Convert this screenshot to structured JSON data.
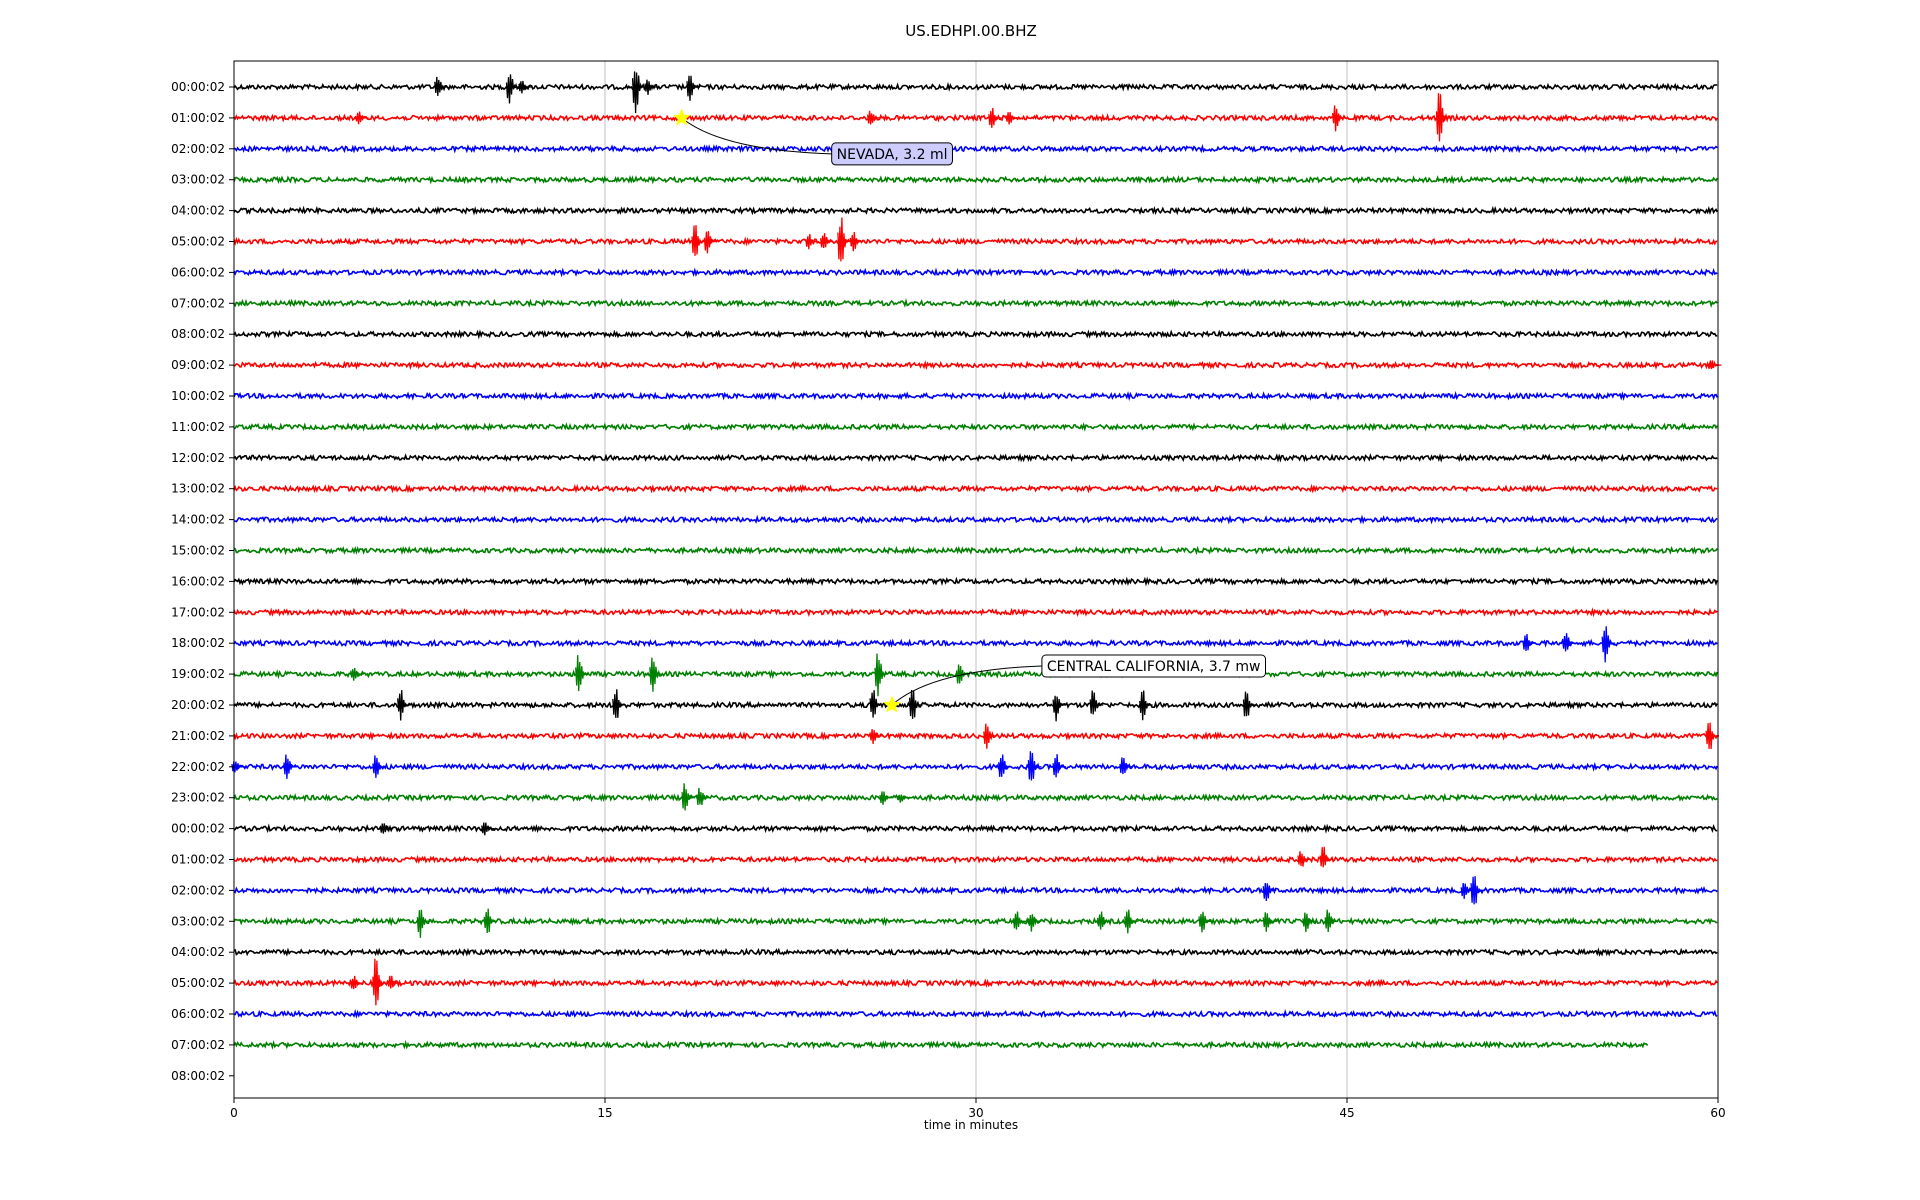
{
  "chart_data": {
    "type": "line",
    "subtype": "seismic-dayplot",
    "title": "US.EDHPI.00.BHZ",
    "xlabel": "time in minutes",
    "ylabel": "",
    "xlim": [
      0,
      60
    ],
    "x_ticks": [
      0,
      15,
      30,
      45,
      60
    ],
    "grid": "vertical-at-ticks",
    "line_colors": [
      "#000000",
      "#ff0000",
      "#0000ff",
      "#008000"
    ],
    "row_labels": [
      "00:00:02",
      "01:00:02",
      "02:00:02",
      "03:00:02",
      "04:00:02",
      "05:00:02",
      "06:00:02",
      "07:00:02",
      "08:00:02",
      "09:00:02",
      "10:00:02",
      "11:00:02",
      "12:00:02",
      "13:00:02",
      "14:00:02",
      "15:00:02",
      "16:00:02",
      "17:00:02",
      "18:00:02",
      "19:00:02",
      "20:00:02",
      "21:00:02",
      "22:00:02",
      "23:00:02",
      "00:00:02",
      "01:00:02",
      "02:00:02",
      "03:00:02",
      "04:00:02",
      "05:00:02",
      "06:00:02",
      "07:00:02",
      "08:00:02"
    ],
    "traces": [
      {
        "label": "00:00:02",
        "color": "#000000",
        "end_minute": 60,
        "spikes": [
          {
            "t": 8.4,
            "amp": 0.5
          },
          {
            "t": 11.3,
            "amp": 0.7
          },
          {
            "t": 11.8,
            "amp": 0.3
          },
          {
            "t": 16.4,
            "amp": 1.0
          },
          {
            "t": 16.9,
            "amp": 0.3
          },
          {
            "t": 18.6,
            "amp": 0.5
          }
        ]
      },
      {
        "label": "01:00:02",
        "color": "#ff0000",
        "end_minute": 60,
        "spikes": [
          {
            "t": 5.2,
            "amp": 0.25
          },
          {
            "t": 25.9,
            "amp": 0.3
          },
          {
            "t": 30.8,
            "amp": 0.4
          },
          {
            "t": 31.5,
            "amp": 0.3
          },
          {
            "t": 44.7,
            "amp": 0.5
          },
          {
            "t": 48.9,
            "amp": 1.0
          }
        ]
      },
      {
        "label": "02:00:02",
        "color": "#0000ff",
        "end_minute": 60,
        "spikes": []
      },
      {
        "label": "03:00:02",
        "color": "#008000",
        "end_minute": 60,
        "spikes": []
      },
      {
        "label": "04:00:02",
        "color": "#000000",
        "end_minute": 60,
        "spikes": []
      },
      {
        "label": "05:00:02",
        "color": "#ff0000",
        "end_minute": 60,
        "spikes": [
          {
            "t": 18.8,
            "amp": 0.7
          },
          {
            "t": 19.3,
            "amp": 0.5
          },
          {
            "t": 23.4,
            "amp": 0.3
          },
          {
            "t": 24.0,
            "amp": 0.4
          },
          {
            "t": 24.7,
            "amp": 1.0
          },
          {
            "t": 25.2,
            "amp": 0.4
          }
        ]
      },
      {
        "label": "06:00:02",
        "color": "#0000ff",
        "end_minute": 60,
        "spikes": []
      },
      {
        "label": "07:00:02",
        "color": "#008000",
        "end_minute": 60,
        "spikes": []
      },
      {
        "label": "08:00:02",
        "color": "#000000",
        "end_minute": 60,
        "spikes": []
      },
      {
        "label": "09:00:02",
        "color": "#ff0000",
        "end_minute": 60,
        "spikes": [
          {
            "t": 59.9,
            "amp": 0.2
          }
        ]
      },
      {
        "label": "10:00:02",
        "color": "#0000ff",
        "end_minute": 60,
        "spikes": []
      },
      {
        "label": "11:00:02",
        "color": "#008000",
        "end_minute": 60,
        "spikes": []
      },
      {
        "label": "12:00:02",
        "color": "#000000",
        "end_minute": 60,
        "spikes": []
      },
      {
        "label": "13:00:02",
        "color": "#ff0000",
        "end_minute": 60,
        "spikes": []
      },
      {
        "label": "14:00:02",
        "color": "#0000ff",
        "end_minute": 60,
        "spikes": []
      },
      {
        "label": "15:00:02",
        "color": "#008000",
        "end_minute": 60,
        "spikes": []
      },
      {
        "label": "16:00:02",
        "color": "#000000",
        "end_minute": 60,
        "spikes": []
      },
      {
        "label": "17:00:02",
        "color": "#ff0000",
        "end_minute": 60,
        "spikes": []
      },
      {
        "label": "18:00:02",
        "color": "#0000ff",
        "end_minute": 60,
        "spikes": [
          {
            "t": 52.4,
            "amp": 0.4
          },
          {
            "t": 54.0,
            "amp": 0.5
          },
          {
            "t": 55.6,
            "amp": 0.8
          }
        ]
      },
      {
        "label": "19:00:02",
        "color": "#008000",
        "end_minute": 60,
        "spikes": [
          {
            "t": 5.0,
            "amp": 0.3
          },
          {
            "t": 14.1,
            "amp": 0.8
          },
          {
            "t": 17.1,
            "amp": 0.7
          },
          {
            "t": 26.2,
            "amp": 0.9
          },
          {
            "t": 29.5,
            "amp": 0.5
          }
        ]
      },
      {
        "label": "20:00:02",
        "color": "#000000",
        "end_minute": 60,
        "spikes": [
          {
            "t": 6.9,
            "amp": 0.6
          },
          {
            "t": 15.6,
            "amp": 0.7
          },
          {
            "t": 26.0,
            "amp": 0.6
          },
          {
            "t": 27.6,
            "amp": 0.7
          },
          {
            "t": 33.4,
            "amp": 0.6
          },
          {
            "t": 34.9,
            "amp": 0.6
          },
          {
            "t": 36.9,
            "amp": 0.6
          },
          {
            "t": 41.1,
            "amp": 0.6
          }
        ]
      },
      {
        "label": "21:00:02",
        "color": "#ff0000",
        "end_minute": 60,
        "spikes": [
          {
            "t": 26.0,
            "amp": 0.3
          },
          {
            "t": 30.6,
            "amp": 0.6
          },
          {
            "t": 59.8,
            "amp": 0.7
          }
        ]
      },
      {
        "label": "22:00:02",
        "color": "#0000ff",
        "end_minute": 60,
        "spikes": [
          {
            "t": 0.2,
            "amp": 0.3
          },
          {
            "t": 2.3,
            "amp": 0.5
          },
          {
            "t": 5.9,
            "amp": 0.5
          },
          {
            "t": 31.2,
            "amp": 0.6
          },
          {
            "t": 32.4,
            "amp": 0.7
          },
          {
            "t": 33.4,
            "amp": 0.5
          },
          {
            "t": 36.1,
            "amp": 0.4
          }
        ]
      },
      {
        "label": "23:00:02",
        "color": "#008000",
        "end_minute": 60,
        "spikes": [
          {
            "t": 18.4,
            "amp": 0.6
          },
          {
            "t": 19.0,
            "amp": 0.4
          },
          {
            "t": 26.4,
            "amp": 0.3
          },
          {
            "t": 27.1,
            "amp": 0.2
          }
        ]
      },
      {
        "label": "00:00:02",
        "color": "#000000",
        "end_minute": 60,
        "spikes": [
          {
            "t": 6.2,
            "amp": 0.3
          },
          {
            "t": 10.3,
            "amp": 0.3
          }
        ]
      },
      {
        "label": "01:00:02",
        "color": "#ff0000",
        "end_minute": 60,
        "spikes": [
          {
            "t": 43.3,
            "amp": 0.4
          },
          {
            "t": 44.2,
            "amp": 0.5
          }
        ]
      },
      {
        "label": "02:00:02",
        "color": "#0000ff",
        "end_minute": 60,
        "spikes": [
          {
            "t": 41.9,
            "amp": 0.5
          },
          {
            "t": 49.9,
            "amp": 0.4
          },
          {
            "t": 50.3,
            "amp": 0.7
          }
        ]
      },
      {
        "label": "03:00:02",
        "color": "#008000",
        "end_minute": 60,
        "spikes": [
          {
            "t": 7.7,
            "amp": 0.6
          },
          {
            "t": 10.4,
            "amp": 0.6
          },
          {
            "t": 31.8,
            "amp": 0.4
          },
          {
            "t": 32.4,
            "amp": 0.4
          },
          {
            "t": 35.2,
            "amp": 0.4
          },
          {
            "t": 36.3,
            "amp": 0.5
          },
          {
            "t": 39.3,
            "amp": 0.5
          },
          {
            "t": 41.9,
            "amp": 0.4
          },
          {
            "t": 43.5,
            "amp": 0.4
          },
          {
            "t": 44.4,
            "amp": 0.5
          }
        ]
      },
      {
        "label": "04:00:02",
        "color": "#000000",
        "end_minute": 60,
        "spikes": []
      },
      {
        "label": "05:00:02",
        "color": "#ff0000",
        "end_minute": 60,
        "spikes": [
          {
            "t": 5.0,
            "amp": 0.3
          },
          {
            "t": 5.9,
            "amp": 1.0
          },
          {
            "t": 6.5,
            "amp": 0.3
          }
        ]
      },
      {
        "label": "06:00:02",
        "color": "#0000ff",
        "end_minute": 60,
        "spikes": []
      },
      {
        "label": "07:00:02",
        "color": "#008000",
        "end_minute": 57.2,
        "spikes": []
      },
      {
        "label": "08:00:02",
        "color": "#000000",
        "end_minute": 0,
        "spikes": []
      }
    ],
    "annotations": [
      {
        "text": "NEVADA, 3.2 ml",
        "row": 1,
        "t": 18.1,
        "marker": "star",
        "marker_color": "#ffff00",
        "box_fill": "#ccccff"
      },
      {
        "text": "CENTRAL CALIFORNIA, 3.7 mw",
        "row": 20,
        "t": 26.6,
        "marker": "star",
        "marker_color": "#ffff00",
        "box_fill": "#ffffff"
      }
    ]
  }
}
